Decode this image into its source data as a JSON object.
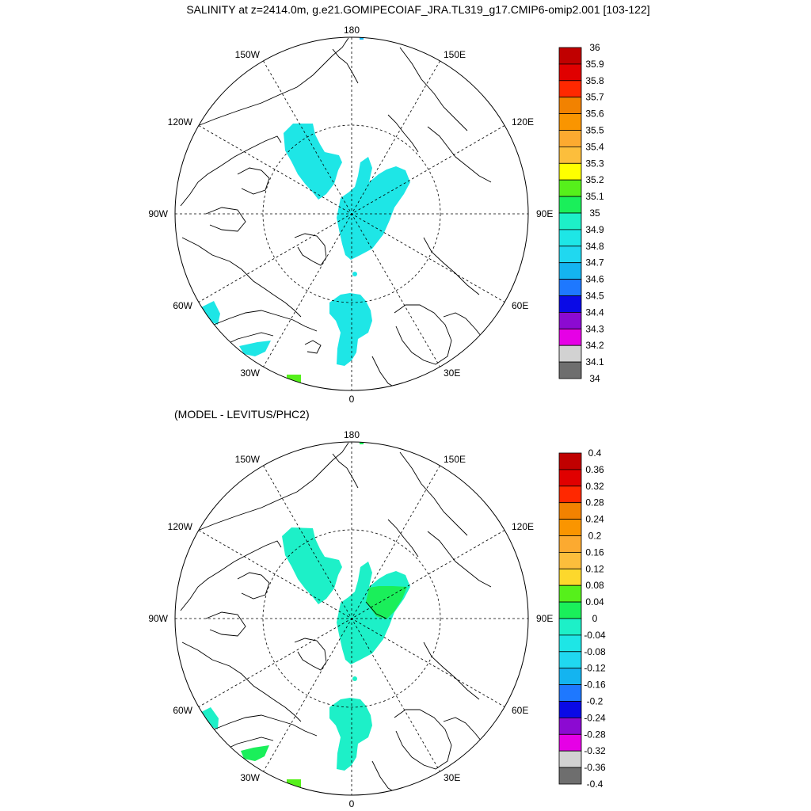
{
  "title": "SALINITY at z=2414.0m, g.e21.GOMIPECOIAF_JRA.TL319_g17.CMIP6-omip2.001 [103-122]",
  "diff_title": "(MODEL - LEVITUS/PHC2)",
  "longitude_labels": {
    "top": "180",
    "bottom": "0",
    "left": "90W",
    "right": "90E",
    "upper_left": "150W",
    "upper_right": "150E",
    "mid_left": "120W",
    "mid_right": "120E",
    "lower_left": "60W",
    "lower_right": "60E",
    "bottom_left": "30W",
    "bottom_right": "30E"
  },
  "colors": {
    "land_outline": "#000000",
    "grid": "#000000",
    "cyan_light": "#1ee6e6",
    "cyan_mint": "#1df0c8",
    "green_bright": "#1aef5a",
    "lime": "#56f01b"
  },
  "salinity_colorbar": {
    "labels": [
      "36",
      "35.9",
      "35.8",
      "35.7",
      "35.6",
      "35.5",
      "35.4",
      "35.3",
      "35.2",
      "35.1",
      "35",
      "34.9",
      "34.8",
      "34.7",
      "34.6",
      "34.5",
      "34.4",
      "34.3",
      "34.2",
      "34.1",
      "34"
    ],
    "colors": [
      "#c00000",
      "#e00000",
      "#ff2800",
      "#f28200",
      "#fa9500",
      "#fcaa30",
      "#fcbe3c",
      "#ffff00",
      "#56f01b",
      "#1aef5a",
      "#1df0c8",
      "#1ee6e6",
      "#20d8f0",
      "#14b4f0",
      "#1e78ff",
      "#0a0ae6",
      "#8c0ad2",
      "#e600e6",
      "#d2d2d2",
      "#6e6e6e"
    ]
  },
  "difference_colorbar": {
    "labels": [
      "0.4",
      "0.36",
      "0.32",
      "0.28",
      "0.24",
      "0.2",
      "0.16",
      "0.12",
      "0.08",
      "0.04",
      "0",
      "-0.04",
      "-0.08",
      "-0.12",
      "-0.16",
      "-0.2",
      "-0.24",
      "-0.28",
      "-0.32",
      "-0.36",
      "-0.4"
    ],
    "colors": [
      "#c00000",
      "#e00000",
      "#ff2800",
      "#f28200",
      "#fa9500",
      "#fcaa30",
      "#fcbe3c",
      "#fdd82c",
      "#56f01b",
      "#1aef5a",
      "#1df0c8",
      "#1ee6e6",
      "#20d8f0",
      "#14b4f0",
      "#1e78ff",
      "#0a0ae6",
      "#8c0ad2",
      "#e600e6",
      "#d2d2d2",
      "#6e6e6e"
    ]
  }
}
